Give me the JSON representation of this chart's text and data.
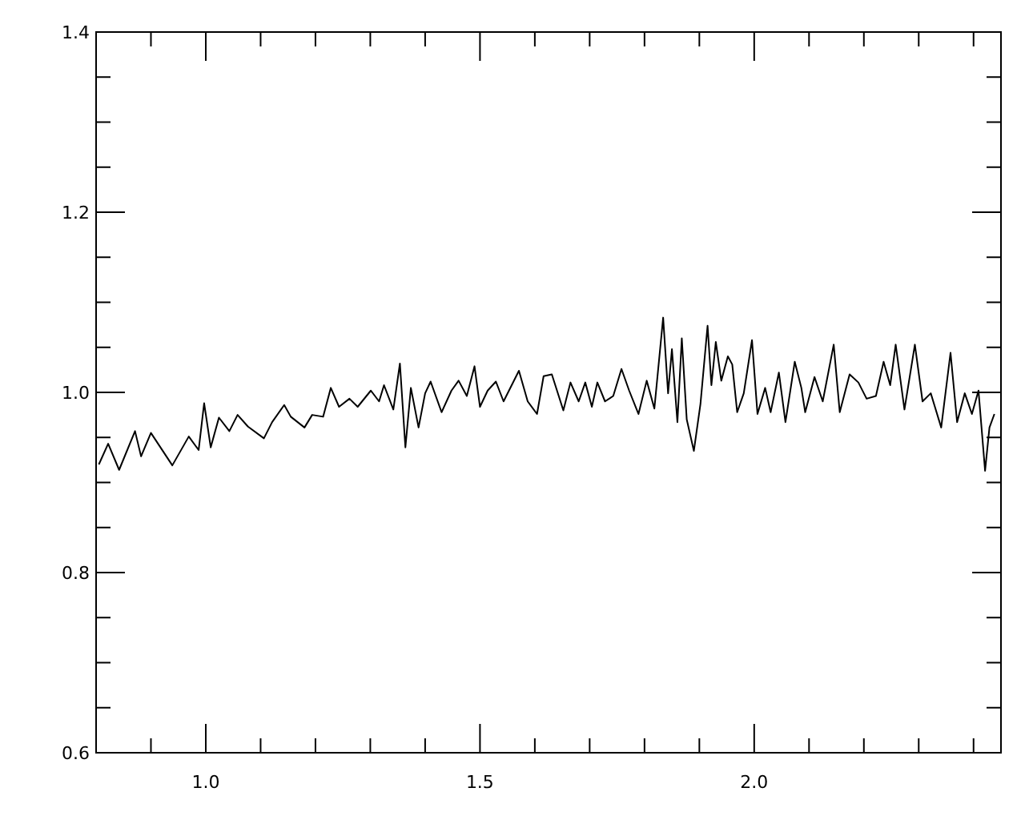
{
  "chart_data": {
    "type": "line",
    "xlim": [
      0.8,
      2.45
    ],
    "ylim": [
      0.6,
      1.4
    ],
    "xticks": [
      {
        "value": 0.9,
        "label": null
      },
      {
        "value": 1.0,
        "label": "1.0"
      },
      {
        "value": 1.1,
        "label": null
      },
      {
        "value": 1.2,
        "label": null
      },
      {
        "value": 1.3,
        "label": null
      },
      {
        "value": 1.4,
        "label": null
      },
      {
        "value": 1.5,
        "label": "1.5"
      },
      {
        "value": 1.6,
        "label": null
      },
      {
        "value": 1.7,
        "label": null
      },
      {
        "value": 1.8,
        "label": null
      },
      {
        "value": 1.9,
        "label": null
      },
      {
        "value": 2.0,
        "label": "2.0"
      },
      {
        "value": 2.1,
        "label": null
      },
      {
        "value": 2.2,
        "label": null
      },
      {
        "value": 2.3,
        "label": null
      },
      {
        "value": 2.4,
        "label": null
      }
    ],
    "yticks": [
      {
        "value": 0.6,
        "label": "0.6"
      },
      {
        "value": 0.65,
        "label": null
      },
      {
        "value": 0.7,
        "label": null
      },
      {
        "value": 0.75,
        "label": null
      },
      {
        "value": 0.8,
        "label": "0.8"
      },
      {
        "value": 0.85,
        "label": null
      },
      {
        "value": 0.9,
        "label": null
      },
      {
        "value": 0.95,
        "label": null
      },
      {
        "value": 1.0,
        "label": "1.0"
      },
      {
        "value": 1.05,
        "label": null
      },
      {
        "value": 1.1,
        "label": null
      },
      {
        "value": 1.15,
        "label": null
      },
      {
        "value": 1.2,
        "label": "1.2"
      },
      {
        "value": 1.25,
        "label": null
      },
      {
        "value": 1.3,
        "label": null
      },
      {
        "value": 1.35,
        "label": null
      },
      {
        "value": 1.4,
        "label": "1.4"
      }
    ],
    "series": [
      {
        "color": "#000000",
        "x": [
          0.805,
          0.822,
          0.842,
          0.871,
          0.882,
          0.9,
          0.939,
          0.969,
          0.987,
          0.997,
          1.009,
          1.024,
          1.043,
          1.058,
          1.077,
          1.106,
          1.121,
          1.143,
          1.155,
          1.18,
          1.194,
          1.214,
          1.228,
          1.243,
          1.262,
          1.277,
          1.301,
          1.316,
          1.325,
          1.342,
          1.354,
          1.364,
          1.374,
          1.388,
          1.4,
          1.41,
          1.43,
          1.448,
          1.461,
          1.476,
          1.49,
          1.5,
          1.514,
          1.529,
          1.543,
          1.571,
          1.587,
          1.604,
          1.616,
          1.631,
          1.652,
          1.665,
          1.68,
          1.692,
          1.704,
          1.714,
          1.728,
          1.743,
          1.758,
          1.772,
          1.789,
          1.804,
          1.818,
          1.834,
          1.843,
          1.85,
          1.86,
          1.868,
          1.877,
          1.89,
          1.902,
          1.915,
          1.922,
          1.93,
          1.94,
          1.952,
          1.96,
          1.969,
          1.981,
          1.996,
          2.006,
          2.02,
          2.03,
          2.045,
          2.057,
          2.074,
          2.086,
          2.093,
          2.11,
          2.125,
          2.145,
          2.156,
          2.174,
          2.19,
          2.205,
          2.222,
          2.236,
          2.248,
          2.258,
          2.274,
          2.293,
          2.307,
          2.322,
          2.341,
          2.358,
          2.37,
          2.384,
          2.397,
          2.409,
          2.421,
          2.429,
          2.438
        ],
        "values": [
          0.92,
          0.943,
          0.914,
          0.957,
          0.929,
          0.955,
          0.919,
          0.951,
          0.936,
          0.988,
          0.939,
          0.972,
          0.957,
          0.975,
          0.962,
          0.949,
          0.967,
          0.986,
          0.973,
          0.961,
          0.975,
          0.973,
          1.005,
          0.984,
          0.993,
          0.984,
          1.002,
          0.99,
          1.008,
          0.981,
          1.032,
          0.939,
          1.005,
          0.961,
          0.999,
          1.012,
          0.978,
          1.002,
          1.013,
          0.996,
          1.029,
          0.984,
          1.002,
          1.012,
          0.99,
          1.024,
          0.99,
          0.976,
          1.018,
          1.02,
          0.98,
          1.011,
          0.99,
          1.011,
          0.984,
          1.011,
          0.99,
          0.996,
          1.026,
          1.002,
          0.976,
          1.013,
          0.982,
          1.083,
          0.999,
          1.048,
          0.967,
          1.06,
          0.97,
          0.935,
          0.987,
          1.074,
          1.008,
          1.056,
          1.013,
          1.04,
          1.031,
          0.978,
          0.999,
          1.058,
          0.976,
          1.005,
          0.978,
          1.022,
          0.967,
          1.034,
          1.005,
          0.978,
          1.017,
          0.99,
          1.053,
          0.978,
          1.02,
          1.011,
          0.993,
          0.996,
          1.034,
          1.008,
          1.053,
          0.981,
          1.053,
          0.99,
          0.999,
          0.961,
          1.044,
          0.967,
          0.999,
          0.976,
          1.002,
          0.913,
          0.961,
          0.976
        ]
      }
    ]
  }
}
